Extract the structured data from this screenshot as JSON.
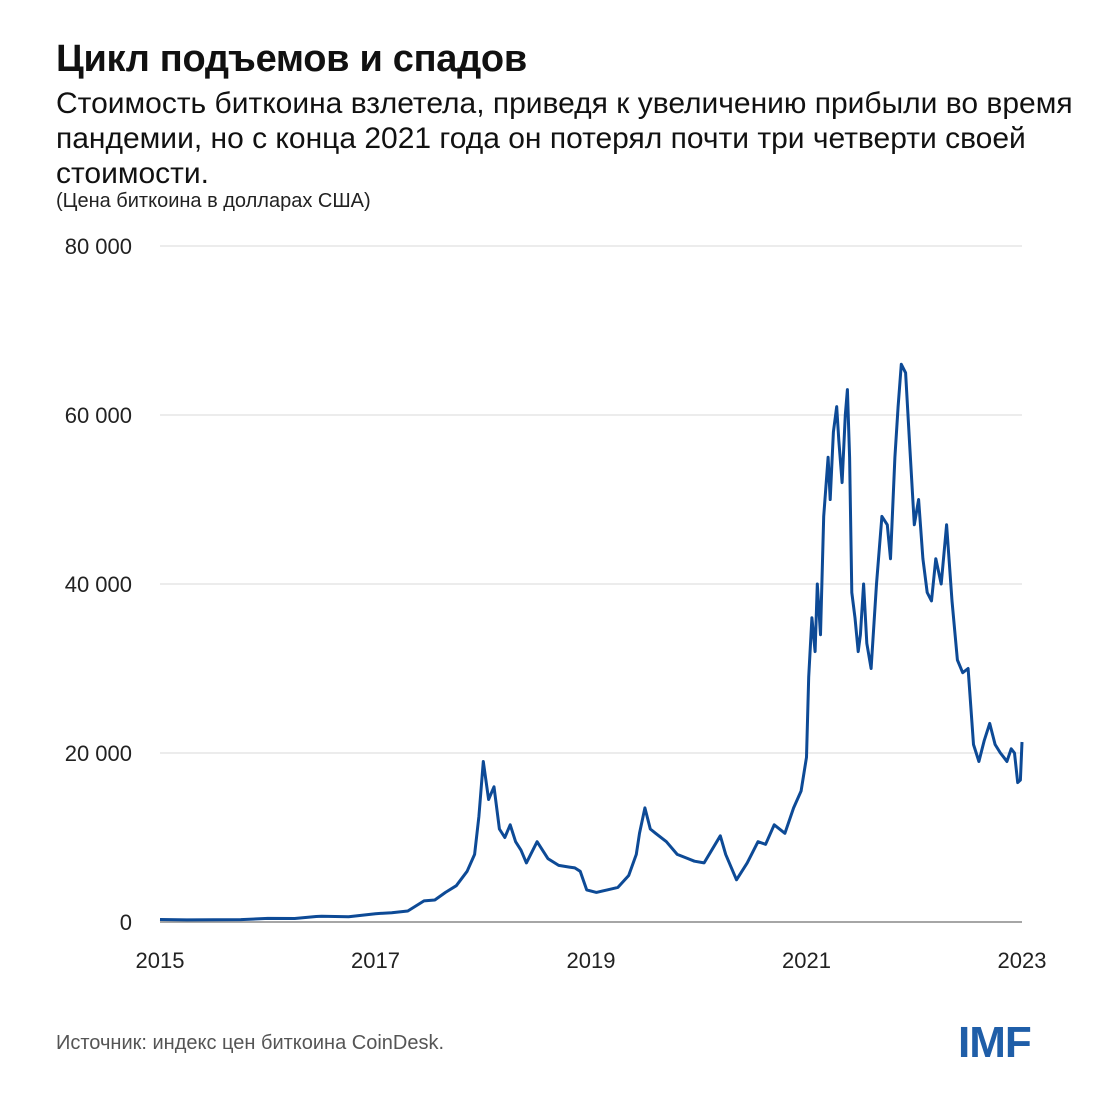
{
  "header": {
    "title": "Цикл подъемов и спадов",
    "subtitle": "Стоимость биткоина взлетела, приведя к увеличению прибыли во время пандемии, но с конца 2021 года он потерял почти три четверти своей стоимости.",
    "units": "(Цена биткоина в долларах США)"
  },
  "footer": {
    "source": "Источник: индекс цен биткоина CoinDesk.",
    "logo": "IMF"
  },
  "colors": {
    "line": "#0d4a96",
    "grid": "#d9d9d9",
    "logo": "#1f5ea8"
  },
  "chart_data": {
    "type": "line",
    "title": "Цикл подъемов и спадов",
    "ylim": [
      0,
      80000
    ],
    "xlim": [
      2015.0,
      2023.0
    ],
    "y_ticks": [
      {
        "value": 0,
        "label": "0"
      },
      {
        "value": 20000,
        "label": "20 000"
      },
      {
        "value": 40000,
        "label": "40 000"
      },
      {
        "value": 60000,
        "label": "60 000"
      },
      {
        "value": 80000,
        "label": "80 000"
      }
    ],
    "x_ticks": [
      {
        "value": 2015,
        "label": "2015"
      },
      {
        "value": 2017,
        "label": "2017"
      },
      {
        "value": 2019,
        "label": "2019"
      },
      {
        "value": 2021,
        "label": "2021"
      },
      {
        "value": 2023,
        "label": "2023"
      }
    ],
    "grid": true,
    "series": [
      {
        "x": [
          2015.0,
          2015.25,
          2015.5,
          2015.75,
          2016.0,
          2016.25,
          2016.45,
          2016.5,
          2016.75,
          2017.0,
          2017.15,
          2017.3,
          2017.45,
          2017.55,
          2017.65,
          2017.75,
          2017.85,
          2017.92,
          2017.96,
          2018.0,
          2018.05,
          2018.1,
          2018.15,
          2018.2,
          2018.25,
          2018.3,
          2018.35,
          2018.4,
          2018.5,
          2018.6,
          2018.7,
          2018.8,
          2018.85,
          2018.9,
          2018.96,
          2019.05,
          2019.15,
          2019.25,
          2019.35,
          2019.42,
          2019.45,
          2019.5,
          2019.55,
          2019.6,
          2019.7,
          2019.8,
          2019.9,
          2019.96,
          2020.05,
          2020.12,
          2020.2,
          2020.25,
          2020.35,
          2020.45,
          2020.55,
          2020.62,
          2020.7,
          2020.8,
          2020.88,
          2020.95,
          2021.0,
          2021.02,
          2021.05,
          2021.08,
          2021.1,
          2021.13,
          2021.16,
          2021.2,
          2021.22,
          2021.25,
          2021.28,
          2021.3,
          2021.33,
          2021.36,
          2021.38,
          2021.4,
          2021.42,
          2021.45,
          2021.48,
          2021.5,
          2021.53,
          2021.56,
          2021.6,
          2021.65,
          2021.7,
          2021.75,
          2021.78,
          2021.82,
          2021.85,
          2021.88,
          2021.92,
          2021.96,
          2022.0,
          2022.04,
          2022.08,
          2022.12,
          2022.16,
          2022.2,
          2022.25,
          2022.3,
          2022.35,
          2022.4,
          2022.45,
          2022.5,
          2022.55,
          2022.6,
          2022.65,
          2022.7,
          2022.75,
          2022.8,
          2022.83,
          2022.86,
          2022.9,
          2022.93,
          2022.96,
          2022.985,
          2023.0
        ],
        "values": [
          300,
          250,
          270,
          280,
          430,
          420,
          650,
          680,
          620,
          980,
          1100,
          1300,
          2500,
          2600,
          3500,
          4300,
          6000,
          8000,
          12500,
          19000,
          14500,
          16000,
          11000,
          10000,
          11500,
          9500,
          8500,
          7000,
          9500,
          7500,
          6700,
          6500,
          6400,
          6000,
          3800,
          3500,
          3800,
          4100,
          5500,
          8000,
          10500,
          13500,
          11000,
          10500,
          9500,
          8000,
          7500,
          7200,
          7000,
          8500,
          10200,
          8000,
          5000,
          7000,
          9500,
          9200,
          11500,
          10500,
          13500,
          15500,
          19500,
          29000,
          36000,
          32000,
          40000,
          34000,
          48000,
          55000,
          50000,
          58000,
          61000,
          57000,
          52000,
          60000,
          63000,
          55000,
          39000,
          36000,
          32000,
          34000,
          40000,
          33000,
          30000,
          40000,
          48000,
          47000,
          43000,
          55000,
          61000,
          66000,
          65000,
          56000,
          47000,
          50000,
          43000,
          39000,
          38000,
          43000,
          40000,
          47000,
          38000,
          31000,
          29500,
          30000,
          21000,
          19000,
          21500,
          23500,
          21000,
          20000,
          19500,
          19000,
          20500,
          20000,
          16500,
          16800,
          21300
        ]
      }
    ]
  }
}
